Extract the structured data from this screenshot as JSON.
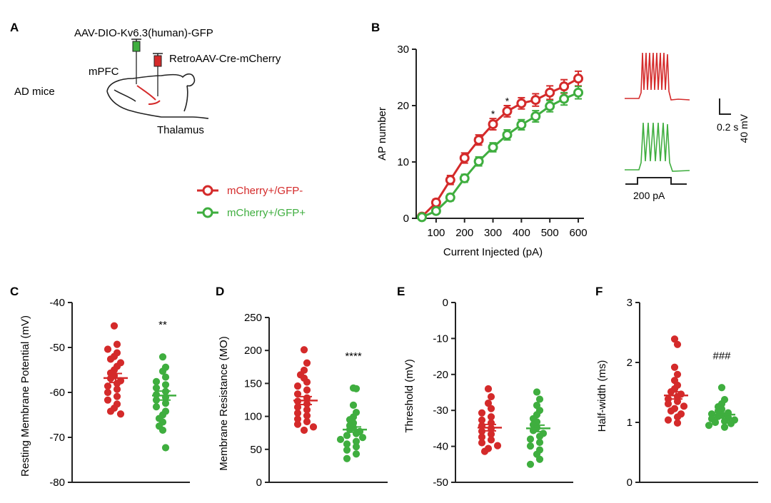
{
  "colors": {
    "red": "#d42a2a",
    "green": "#3fae3f",
    "axis": "#222222"
  },
  "panel_a": {
    "letter": "A",
    "green_virus": "AAV-DIO-Kv6.3(human)-GFP",
    "red_virus": "RetroAAV-Cre-mCherry",
    "region_top": "mPFC",
    "region_bottom": "Thalamus",
    "subject": "AD mice"
  },
  "legend": {
    "red": "mCherry+/GFP-",
    "green": "mCherry+/GFP+"
  },
  "panel_b": {
    "letter": "B",
    "trace_label": "200 pA",
    "scale_v": "40 mV",
    "scale_t": "0.2 s"
  },
  "chart_data": [
    {
      "id": "B",
      "type": "line",
      "title": "",
      "xlabel": "Current Injected (pA)",
      "ylabel": "AP number",
      "xlim": [
        30,
        620
      ],
      "ylim": [
        0,
        30
      ],
      "xticks": [
        "100",
        "200",
        "300",
        "400",
        "500",
        "600"
      ],
      "xtick_values": [
        100,
        200,
        300,
        400,
        500,
        600
      ],
      "yticks": [
        "0",
        "10",
        "20",
        "30"
      ],
      "ytick_values": [
        0,
        10,
        20,
        30
      ],
      "x": [
        50,
        100,
        150,
        200,
        250,
        300,
        350,
        400,
        450,
        500,
        550,
        600
      ],
      "series": [
        {
          "name": "mCherry+/GFP-",
          "color": "red",
          "values": [
            0.3,
            2.8,
            6.8,
            10.7,
            13.9,
            16.7,
            19.0,
            20.4,
            21.0,
            22.3,
            23.4,
            24.8
          ],
          "err": [
            0.2,
            0.6,
            0.8,
            0.9,
            0.9,
            1.0,
            1.0,
            1.0,
            1.1,
            1.2,
            1.2,
            1.3
          ]
        },
        {
          "name": "mCherry+/GFP+",
          "color": "green",
          "values": [
            0.2,
            1.3,
            3.7,
            7.1,
            10.1,
            12.6,
            14.8,
            16.6,
            18.1,
            19.9,
            21.2,
            22.3
          ],
          "err": [
            0.2,
            0.4,
            0.6,
            0.7,
            0.8,
            0.8,
            0.9,
            0.9,
            1.0,
            1.0,
            1.1,
            1.1
          ]
        }
      ],
      "annotations": [
        {
          "text": "*",
          "x": 300,
          "y": 18.4
        },
        {
          "text": "*",
          "x": 350,
          "y": 20.7
        }
      ]
    },
    {
      "id": "C",
      "type": "scatter",
      "letter": "C",
      "ylabel": "Resting Membrane Potential (mV)",
      "ylim": [
        -80,
        -40
      ],
      "yticks": [
        "-40",
        "-50",
        "-60",
        "-70",
        "-80"
      ],
      "ytick_values": [
        -40,
        -50,
        -60,
        -70,
        -80
      ],
      "significance": "**",
      "groups": [
        {
          "name": "mCherry+/GFP-",
          "color": "red",
          "mean": -56.8,
          "sem": 1.0,
          "values": [
            -45.2,
            -49.3,
            -50.4,
            -51.2,
            -52.0,
            -52.6,
            -53.4,
            -54.2,
            -55.0,
            -55.7,
            -56.3,
            -56.9,
            -57.4,
            -58.0,
            -58.6,
            -59.3,
            -60.0,
            -60.9,
            -61.7,
            -62.6,
            -63.5,
            -64.2,
            -64.8
          ]
        },
        {
          "name": "mCherry+/GFP+",
          "color": "green",
          "mean": -60.7,
          "sem": 1.0,
          "values": [
            -52.1,
            -54.4,
            -55.3,
            -56.6,
            -57.6,
            -58.3,
            -59.0,
            -59.8,
            -60.5,
            -61.1,
            -61.7,
            -62.4,
            -63.2,
            -64.2,
            -65.0,
            -65.8,
            -66.6,
            -67.5,
            -68.4,
            -72.3
          ]
        }
      ]
    },
    {
      "id": "D",
      "type": "scatter",
      "letter": "D",
      "ylabel": "Membrane Resistance (MO)",
      "ylim": [
        0,
        250
      ],
      "yticks": [
        "0",
        "50",
        "100",
        "150",
        "200",
        "250"
      ],
      "ytick_values": [
        0,
        50,
        100,
        150,
        200,
        250
      ],
      "significance": "****",
      "groups": [
        {
          "name": "mCherry+/GFP-",
          "color": "red",
          "mean": 124,
          "sem": 6,
          "values": [
            201,
            181,
            170,
            163,
            158,
            152,
            146,
            140,
            134,
            128,
            123,
            119,
            114,
            110,
            105,
            101,
            96,
            92,
            88,
            84,
            79
          ]
        },
        {
          "name": "mCherry+/GFP+",
          "color": "green",
          "mean": 80,
          "sem": 4,
          "values": [
            143,
            142,
            117,
            106,
            99,
            95,
            90,
            86,
            83,
            80,
            77,
            74,
            71,
            68,
            65,
            62,
            58,
            54,
            49,
            43,
            36
          ]
        }
      ]
    },
    {
      "id": "E",
      "type": "scatter",
      "letter": "E",
      "ylabel": "Threshold (mV)",
      "ylim": [
        -50,
        0
      ],
      "yticks": [
        "0",
        "-10",
        "-20",
        "-30",
        "-40",
        "-50"
      ],
      "ytick_values": [
        0,
        -10,
        -20,
        -30,
        -40,
        -50
      ],
      "significance": "",
      "groups": [
        {
          "name": "mCherry+/GFP-",
          "color": "red",
          "mean": -34.8,
          "sem": 0.9,
          "values": [
            -24.0,
            -26.2,
            -28.0,
            -29.5,
            -30.7,
            -31.8,
            -32.7,
            -33.5,
            -34.3,
            -35.0,
            -35.8,
            -36.6,
            -37.4,
            -38.2,
            -39.0,
            -39.8,
            -40.6,
            -41.4
          ]
        },
        {
          "name": "mCherry+/GFP+",
          "color": "green",
          "mean": -35.0,
          "sem": 0.9,
          "values": [
            -24.9,
            -26.9,
            -28.6,
            -30.0,
            -31.2,
            -32.3,
            -33.2,
            -34.0,
            -34.8,
            -35.6,
            -36.4,
            -37.2,
            -38.0,
            -38.9,
            -39.9,
            -41.0,
            -42.2,
            -43.6,
            -45.0
          ]
        }
      ]
    },
    {
      "id": "F",
      "type": "scatter",
      "letter": "F",
      "ylabel": "Half-width (ms)",
      "ylim": [
        0,
        3
      ],
      "yticks": [
        "0",
        "1",
        "2",
        "3"
      ],
      "ytick_values": [
        0,
        1,
        2,
        3
      ],
      "significance": "###",
      "groups": [
        {
          "name": "mCherry+/GFP-",
          "color": "red",
          "mean": 1.45,
          "sem": 0.06,
          "values": [
            2.39,
            2.3,
            1.92,
            1.8,
            1.7,
            1.62,
            1.56,
            1.51,
            1.47,
            1.43,
            1.39,
            1.35,
            1.31,
            1.27,
            1.23,
            1.19,
            1.14,
            1.09,
            1.04,
            0.99
          ]
        },
        {
          "name": "mCherry+/GFP+",
          "color": "green",
          "mean": 1.13,
          "sem": 0.03,
          "values": [
            1.58,
            1.38,
            1.31,
            1.26,
            1.22,
            1.19,
            1.16,
            1.14,
            1.12,
            1.1,
            1.08,
            1.06,
            1.04,
            1.02,
            1.0,
            0.98,
            0.95,
            0.92
          ]
        }
      ]
    }
  ]
}
